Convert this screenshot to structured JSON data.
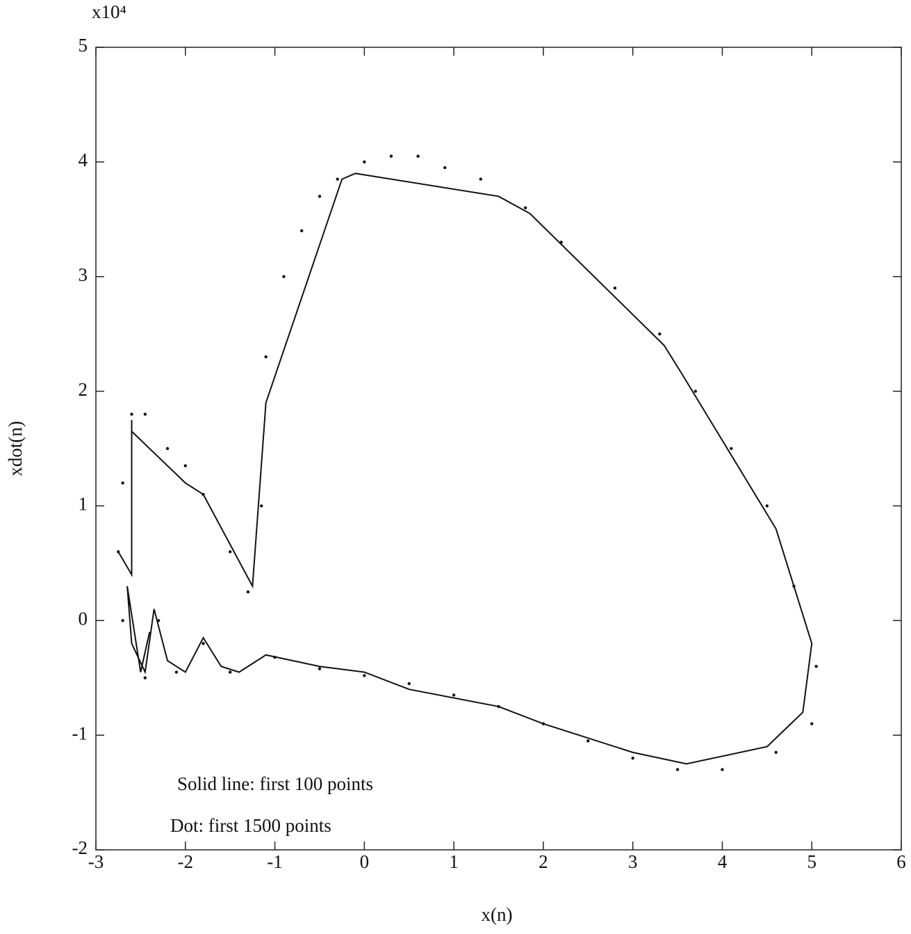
{
  "chart_data": {
    "type": "line",
    "multiplier": "x10⁴",
    "xlabel": "x(n)",
    "ylabel": "xdot(n)",
    "annotations": [
      "Solid line: first 100 points",
      "Dot: first 1500 points"
    ],
    "xlim": [
      -3,
      6
    ],
    "ylim": [
      -2,
      5
    ],
    "xticks": [
      -3,
      -2,
      -1,
      0,
      1,
      2,
      3,
      4,
      5,
      6
    ],
    "yticks": [
      -2,
      -1,
      0,
      1,
      2,
      3,
      4,
      5
    ],
    "color": "#111111",
    "series": [
      {
        "style": "line",
        "x": [
          -2.75,
          -2.6,
          -2.6,
          -2.6,
          -2.0,
          -1.8,
          -1.25,
          -1.1,
          -0.25,
          -0.1,
          1.5,
          1.85,
          3.35,
          3.55,
          4.6,
          5.0,
          4.9,
          4.5,
          3.6,
          3.0,
          2.0,
          1.5,
          0.5,
          0.0,
          -0.5,
          -1.1,
          -1.4,
          -1.6,
          -1.8,
          -2.0,
          -2.2,
          -2.35,
          -2.45,
          -2.6,
          -2.65,
          -2.5,
          -2.4
        ],
        "values": [
          0.6,
          0.4,
          1.75,
          1.65,
          1.2,
          1.1,
          0.3,
          1.9,
          3.85,
          3.9,
          3.7,
          3.55,
          2.4,
          2.15,
          0.8,
          -0.2,
          -0.8,
          -1.1,
          -1.25,
          -1.15,
          -0.9,
          -0.75,
          -0.6,
          -0.45,
          -0.4,
          -0.3,
          -0.45,
          -0.4,
          -0.15,
          -0.45,
          -0.35,
          0.1,
          -0.45,
          -0.2,
          0.3,
          -0.45,
          -0.1
        ]
      },
      {
        "style": "dots",
        "x": [
          -2.6,
          -2.45,
          -2.2,
          -2.0,
          -1.8,
          -1.5,
          -1.3,
          -1.15,
          -1.1,
          -0.9,
          -0.7,
          -0.5,
          -0.3,
          0.0,
          0.3,
          0.6,
          0.9,
          1.3,
          1.8,
          2.2,
          2.8,
          3.3,
          3.7,
          4.1,
          4.5,
          4.8,
          5.05,
          5.0,
          4.6,
          4.0,
          3.5,
          3.0,
          2.5,
          2.0,
          1.5,
          1.0,
          0.5,
          0.0,
          -0.5,
          -1.0,
          -1.5,
          -1.8,
          -2.1,
          -2.3,
          -2.45,
          -2.7,
          -2.75,
          -2.7
        ],
        "values": [
          1.8,
          1.8,
          1.5,
          1.35,
          1.1,
          0.6,
          0.25,
          1.0,
          2.3,
          3.0,
          3.4,
          3.7,
          3.85,
          4.0,
          4.05,
          4.05,
          3.95,
          3.85,
          3.6,
          3.3,
          2.9,
          2.5,
          2.0,
          1.5,
          1.0,
          0.3,
          -0.4,
          -0.9,
          -1.15,
          -1.3,
          -1.3,
          -1.2,
          -1.05,
          -0.9,
          -0.75,
          -0.65,
          -0.55,
          -0.48,
          -0.42,
          -0.32,
          -0.45,
          -0.2,
          -0.45,
          0.0,
          -0.5,
          0.0,
          0.6,
          1.2
        ]
      }
    ]
  }
}
